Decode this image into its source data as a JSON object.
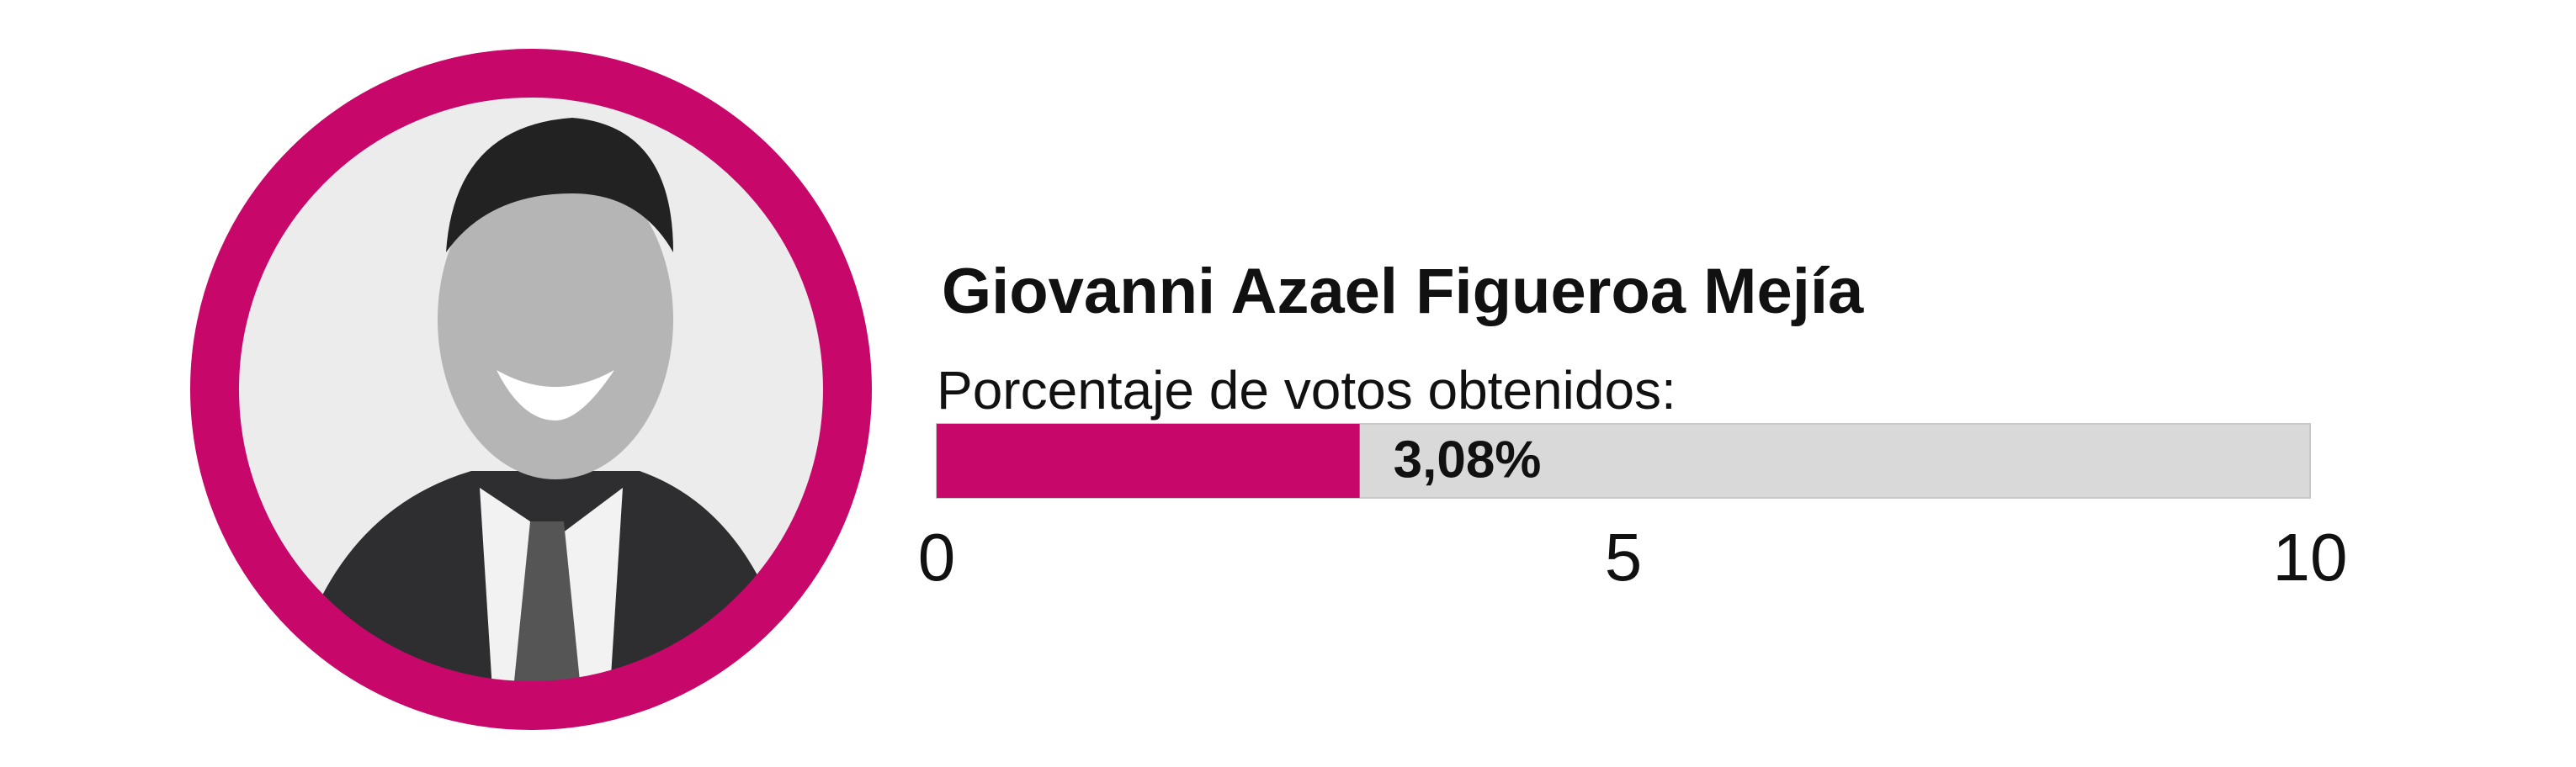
{
  "chart_data": {
    "type": "bar",
    "orientation": "horizontal",
    "title": "Giovanni Azael Figueroa Mejía",
    "subtitle": "Porcentaje de votos obtenidos:",
    "values": [
      3.08
    ],
    "value_labels": [
      "3,08%"
    ],
    "color": "#c8076a",
    "xlim": [
      0,
      10
    ],
    "xticks": [
      0,
      5,
      10
    ]
  }
}
